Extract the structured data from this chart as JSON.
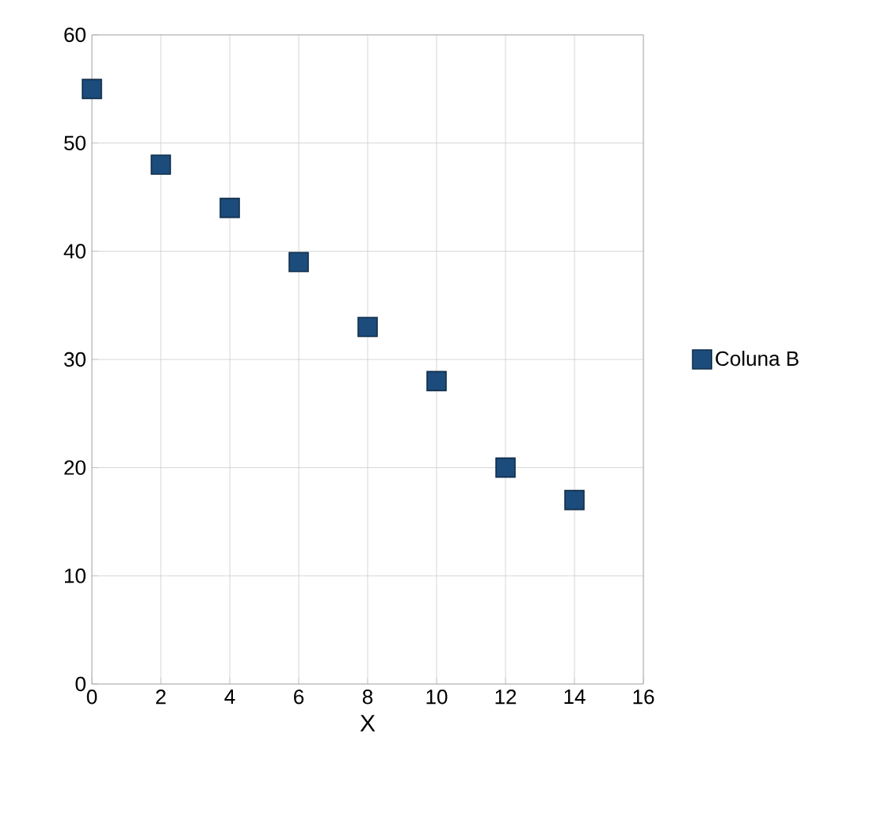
{
  "chart_data": {
    "type": "scatter",
    "xlabel": "X",
    "x": [
      0,
      2,
      4,
      6,
      8,
      10,
      12,
      14
    ],
    "series": [
      {
        "name": "Coluna B",
        "color": "#1c4c7c",
        "values": [
          55,
          48,
          44,
          39,
          33,
          28,
          20,
          17
        ]
      }
    ],
    "xlim": [
      0,
      16
    ],
    "xticks": [
      0,
      2,
      4,
      6,
      8,
      10,
      12,
      14,
      16
    ],
    "ylim": [
      0,
      60
    ],
    "yticks": [
      0,
      10,
      20,
      30,
      40,
      50,
      60
    ],
    "grid": true,
    "legend": "right",
    "marker": "square"
  }
}
